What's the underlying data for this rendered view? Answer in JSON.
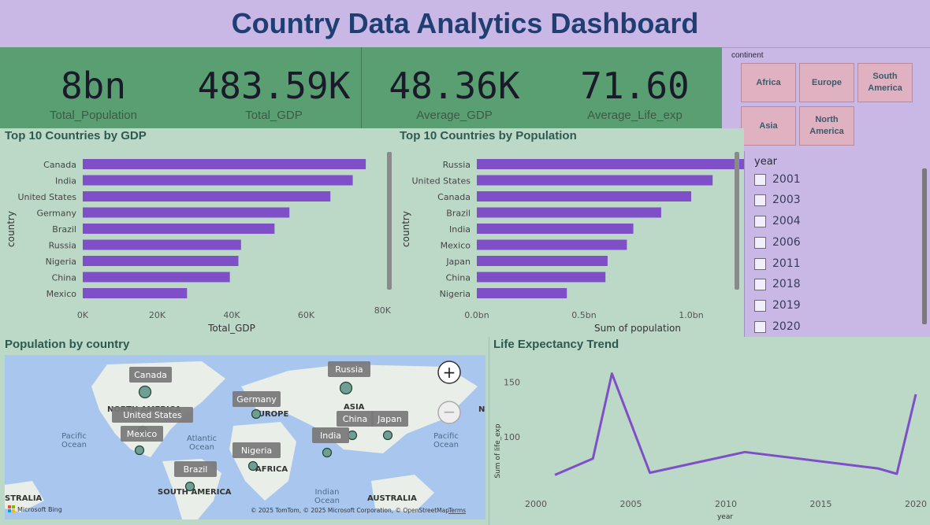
{
  "title": "Country Data Analytics Dashboard",
  "kpis": [
    {
      "value": "8bn",
      "label": "Total_Population"
    },
    {
      "value": "483.59K",
      "label": "Total_GDP"
    },
    {
      "value": "48.36K",
      "label": "Average_GDP"
    },
    {
      "value": "71.60",
      "label": "Average_Life_exp"
    }
  ],
  "continent_slicer": {
    "label": "continent",
    "options": [
      "Africa",
      "Europe",
      "South America",
      "Asia",
      "North America"
    ]
  },
  "year_slicer": {
    "label": "year",
    "options": [
      "2001",
      "2003",
      "2004",
      "2006",
      "2011",
      "2018",
      "2019",
      "2020"
    ]
  },
  "gdp_chart": {
    "title": "Top 10 Countries by GDP",
    "xlabel": "Total_GDP",
    "ylabel": "country",
    "ticks": [
      "0K",
      "20K",
      "40K",
      "60K",
      "80K"
    ]
  },
  "pop_chart": {
    "title": "Top 10 Countries by Population",
    "xlabel": "Sum of population",
    "ylabel": "country",
    "ticks": [
      "0.0bn",
      "0.5bn",
      "1.0bn"
    ]
  },
  "map": {
    "title": "Population by country",
    "labels": [
      "Canada",
      "United States",
      "Mexico",
      "Germany",
      "Nigeria",
      "Brazil",
      "Russia",
      "China",
      "India",
      "Japan"
    ],
    "regions": [
      "NORTH AMERICA",
      "EUROPE",
      "ASIA",
      "AFRICA",
      "SOUTH AMERICA",
      "AUSTRALIA",
      "STRALIA",
      "N"
    ],
    "oceans": [
      "Pacific\nOcean",
      "Atlantic\nOcean",
      "Indian\nOcean",
      "Pacific\nOcean"
    ],
    "attribution": "© 2025 TomTom, © 2025 Microsoft Corporation, © OpenStreetMap",
    "terms": "Terms",
    "bing": "Microsoft Bing",
    "zoom_in": "+",
    "zoom_out": "−"
  },
  "life_chart": {
    "title": "Life Expectancy Trend",
    "xlabel": "year",
    "ylabel": "Sum of life_exp",
    "yticks": [
      "150",
      "100"
    ],
    "xticks": [
      "2000",
      "2005",
      "2010",
      "2015",
      "2020"
    ]
  },
  "chart_data": [
    {
      "type": "bar",
      "title": "Top 10 Countries by GDP",
      "xlabel": "Total_GDP",
      "ylabel": "country",
      "categories": [
        "Canada",
        "India",
        "United States",
        "Germany",
        "Brazil",
        "Russia",
        "Nigeria",
        "China",
        "Mexico"
      ],
      "values": [
        76000,
        72500,
        66500,
        55500,
        51500,
        42500,
        41800,
        39500,
        28000
      ],
      "xlim": [
        0,
        80000
      ],
      "ticks": [
        "0K",
        "20K",
        "40K",
        "60K",
        "80K"
      ]
    },
    {
      "type": "bar",
      "title": "Top 10 Countries by Population",
      "xlabel": "Sum of population",
      "ylabel": "country",
      "categories": [
        "Russia",
        "United States",
        "Canada",
        "Brazil",
        "India",
        "Mexico",
        "Japan",
        "China",
        "Nigeria"
      ],
      "values": [
        1.36,
        1.1,
        1.0,
        0.86,
        0.73,
        0.7,
        0.61,
        0.6,
        0.42
      ],
      "xlim": [
        0,
        1.5
      ],
      "ticks": [
        "0.0bn",
        "0.5bn",
        "1.0bn"
      ]
    },
    {
      "type": "line",
      "title": "Life Expectancy Trend",
      "xlabel": "year",
      "ylabel": "Sum of life_exp",
      "x": [
        2001,
        2003,
        2004,
        2006,
        2011,
        2018,
        2019,
        2020
      ],
      "y": [
        65,
        80,
        158,
        67,
        86,
        71,
        66,
        139
      ],
      "xlim": [
        2000,
        2020
      ],
      "ylim": [
        40,
        170
      ]
    }
  ]
}
